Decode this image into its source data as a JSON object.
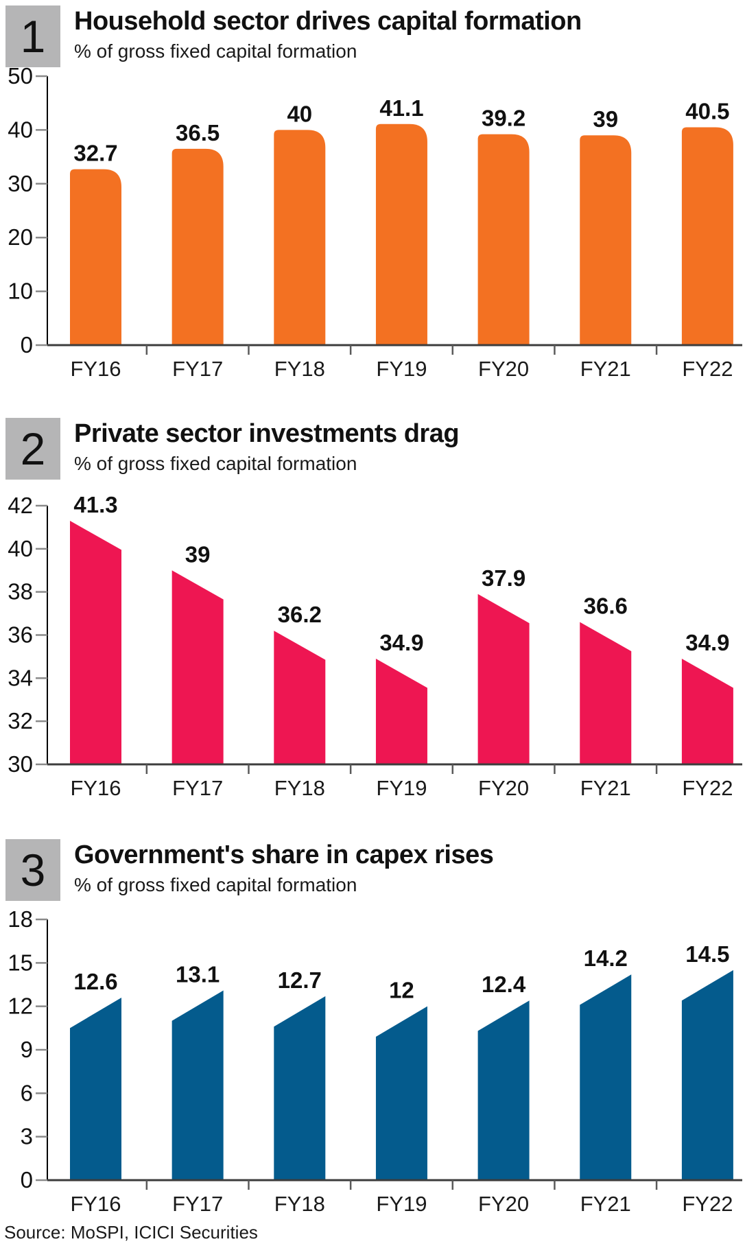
{
  "source": "Source: MoSPI, ICICI Securities",
  "chart_data": [
    {
      "type": "bar",
      "panel_number": "1",
      "title": "Household sector drives capital formation",
      "subtitle": "% of gross fixed capital formation",
      "categories": [
        "FY16",
        "FY17",
        "FY18",
        "FY19",
        "FY20",
        "FY21",
        "FY22"
      ],
      "values": [
        32.7,
        36.5,
        40,
        41.1,
        39.2,
        39,
        40.5
      ],
      "labels": [
        "32.7",
        "36.5",
        "40",
        "41.1",
        "39.2",
        "39",
        "40.5"
      ],
      "ylim": [
        0,
        50
      ],
      "yticks": [
        0,
        10,
        20,
        30,
        40,
        50
      ],
      "xlabel": "",
      "ylabel": "",
      "grid": "off",
      "legend": "none",
      "bar_color": "#F37122",
      "bar_shape": "rounded-top-right"
    },
    {
      "type": "bar",
      "panel_number": "2",
      "title": "Private sector investments drag",
      "subtitle": "% of gross fixed capital formation",
      "categories": [
        "FY16",
        "FY17",
        "FY18",
        "FY19",
        "FY20",
        "FY21",
        "FY22"
      ],
      "values": [
        41.3,
        39,
        36.2,
        34.9,
        37.9,
        36.6,
        34.9
      ],
      "labels": [
        "41.3",
        "39",
        "36.2",
        "34.9",
        "37.9",
        "36.6",
        "34.9"
      ],
      "ylim": [
        30,
        42
      ],
      "yticks": [
        30,
        32,
        34,
        36,
        38,
        40,
        42
      ],
      "xlabel": "",
      "ylabel": "",
      "grid": "off",
      "legend": "none",
      "bar_color": "#EE1652",
      "bar_shape": "slope-down"
    },
    {
      "type": "bar",
      "panel_number": "3",
      "title": "Government's share in capex rises",
      "subtitle": "% of gross fixed capital formation",
      "categories": [
        "FY16",
        "FY17",
        "FY18",
        "FY19",
        "FY20",
        "FY21",
        "FY22"
      ],
      "values": [
        12.6,
        13.1,
        12.7,
        12,
        12.4,
        14.2,
        14.5
      ],
      "labels": [
        "12.6",
        "13.1",
        "12.7",
        "12",
        "12.4",
        "14.2",
        "14.5"
      ],
      "ylim": [
        0,
        18
      ],
      "yticks": [
        0,
        3,
        6,
        9,
        12,
        15,
        18
      ],
      "xlabel": "",
      "ylabel": "",
      "grid": "off",
      "legend": "none",
      "bar_color": "#045B8D",
      "bar_shape": "slope-up"
    }
  ]
}
